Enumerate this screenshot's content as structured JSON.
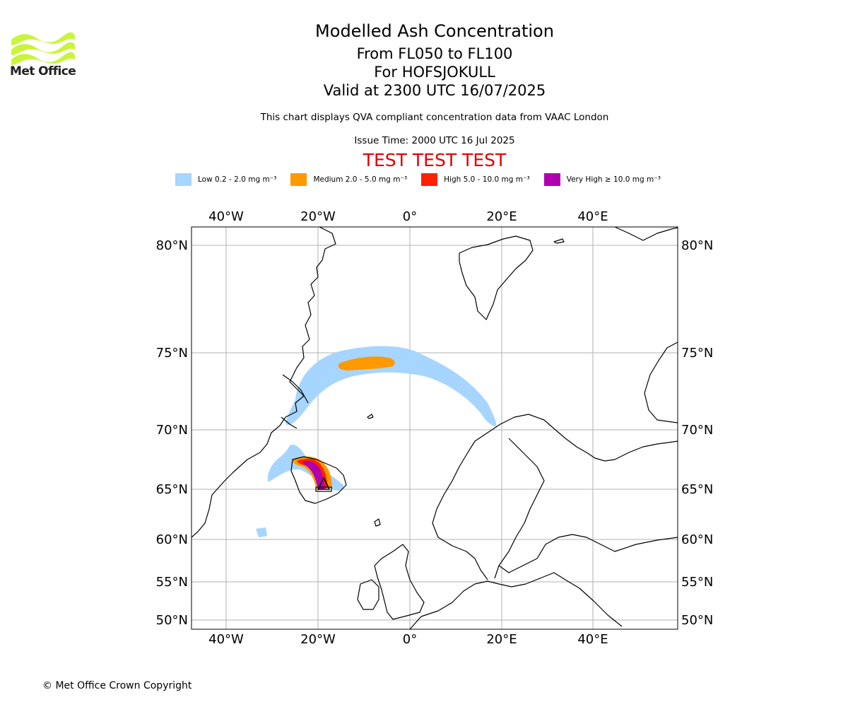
{
  "logo": {
    "text": "Met Office",
    "colors": {
      "waves": "#c8f53a",
      "text": "#222222"
    }
  },
  "title": {
    "line1": "Modelled Ash Concentration",
    "line2": "From FL050 to FL100",
    "line3": "For HOFSJOKULL",
    "line4": "Valid at 2300 UTC 16/07/2025"
  },
  "subtitle": "This chart displays QVA compliant concentration data from VAAC London",
  "issue_time": "Issue Time: 2000 UTC 16 Jul 2025",
  "test_banner": "TEST TEST TEST",
  "legend": [
    {
      "label": "Low 0.2 - 2.0 mg m⁻³",
      "color": "#a6d5ff"
    },
    {
      "label": "Medium 2.0 - 5.0 mg m⁻³",
      "color": "#ff9900"
    },
    {
      "label": "High 5.0 - 10.0 mg m⁻³",
      "color": "#ff2200"
    },
    {
      "label": "Very High  ≥  10.0 mg m⁻³",
      "color": "#b000b0"
    }
  ],
  "axes": {
    "lon_labels": [
      "40°W",
      "20°W",
      "0°",
      "20°E",
      "40°E"
    ],
    "lat_labels": [
      "80°N",
      "75°N",
      "70°N",
      "65°N",
      "60°N",
      "55°N",
      "50°N"
    ],
    "gridlines": true
  },
  "copyright": "© Met Office Crown Copyright"
}
